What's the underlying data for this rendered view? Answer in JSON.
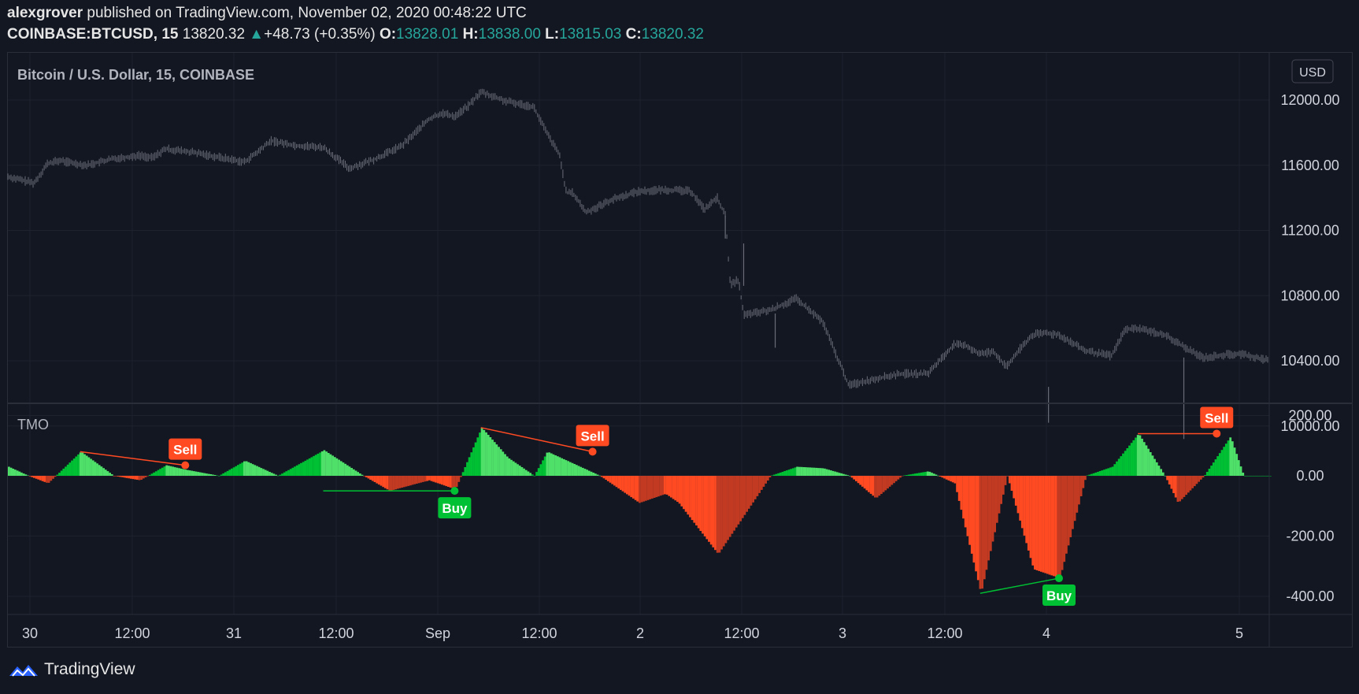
{
  "header": {
    "publisher": "alexgrover",
    "published_text": " published on TradingView.com, November 02, 2020 00:48:22 UTC",
    "symbol": "COINBASE:BTCUSD, 15",
    "last": "13820.32",
    "change": "+48.73 (+0.35%)",
    "o_label": "O:",
    "o_value": "13828.01",
    "h_label": "H:",
    "h_value": "13838.00",
    "l_label": "L:",
    "l_value": "13815.03",
    "c_label": "C:",
    "c_value": "13820.32"
  },
  "main_pane": {
    "title": "Bitcoin / U.S. Dollar, 15, COINBASE",
    "currency": "USD"
  },
  "indicator_pane": {
    "title": "TMO"
  },
  "footer": {
    "brand": "TradingView"
  },
  "colors": {
    "background": "#131722",
    "grid": "#1e222d",
    "axis_text": "#d1d4dc",
    "candles": "#6a6d78",
    "bright_green": "#00c033",
    "light_green": "#4fe06a",
    "bright_red": "#ff4a22",
    "dark_red": "#c23a22",
    "teal": "#26a69a",
    "brand_blue": "#2962ff"
  },
  "chart_data": [
    {
      "type": "line",
      "title": "Bitcoin / U.S. Dollar, 15, COINBASE",
      "x_ticks": [
        "30",
        "12:00",
        "31",
        "12:00",
        "Sep",
        "12:00",
        "2",
        "12:00",
        "3",
        "12:00",
        "4",
        "5"
      ],
      "y_ticks": [
        "12000.00",
        "11600.00",
        "11200.00",
        "10800.00",
        "10400.00",
        "10000.00"
      ],
      "ylim": [
        9700,
        12280
      ],
      "grid": true,
      "series": [
        {
          "x": [
            0,
            2,
            3,
            4,
            4.5,
            6,
            8,
            10,
            11,
            12,
            14,
            16,
            18,
            19,
            20,
            22,
            24,
            26,
            28,
            30,
            32,
            33,
            34,
            35,
            36,
            38,
            40,
            41,
            42,
            42.5,
            43,
            44,
            46,
            48,
            50,
            52,
            53,
            54,
            54.6,
            55,
            55.6,
            56,
            58,
            60,
            62,
            64,
            66,
            68,
            70,
            72,
            73,
            74,
            75,
            76,
            77,
            78,
            79,
            80,
            82,
            84,
            85,
            86,
            88,
            90,
            91,
            92,
            93,
            94,
            96
          ],
          "values": [
            11530,
            11490,
            11610,
            11630,
            11620,
            11600,
            11640,
            11660,
            11645,
            11700,
            11680,
            11650,
            11620,
            11680,
            11750,
            11720,
            11710,
            11580,
            11640,
            11720,
            11880,
            11920,
            11900,
            11960,
            12050,
            11990,
            11960,
            11800,
            11660,
            11430,
            11430,
            11310,
            11390,
            11440,
            11450,
            11440,
            11330,
            11400,
            11290,
            10860,
            10900,
            10680,
            10710,
            10780,
            10640,
            10250,
            10290,
            10320,
            10320,
            10500,
            10490,
            10440,
            10460,
            10360,
            10470,
            10560,
            10570,
            10560,
            10460,
            10430,
            10590,
            10600,
            10560,
            10460,
            10420,
            10430,
            10440,
            10440,
            10400
          ]
        }
      ]
    },
    {
      "type": "area",
      "title": "TMO",
      "x_ticks": [
        "30",
        "12:00",
        "31",
        "12:00",
        "Sep",
        "12:00",
        "2",
        "12:00",
        "3",
        "12:00",
        "4",
        "5"
      ],
      "y_ticks": [
        "200.00",
        "0.00",
        "-200.00",
        "-400.00"
      ],
      "ylim": [
        -455,
        210
      ],
      "series": [
        {
          "name": "TMO",
          "x": [
            0,
            1.5,
            3,
            5.5,
            8,
            10,
            12,
            13.5,
            16,
            18,
            20.5,
            24,
            27,
            29,
            32,
            34,
            36,
            38,
            40,
            41,
            45,
            48,
            50,
            51,
            54,
            58,
            60,
            62,
            64,
            66,
            68,
            70,
            72,
            74,
            76,
            78,
            80,
            82,
            84,
            86,
            88,
            89,
            91,
            93,
            94
          ],
          "values": [
            30,
            0,
            -25,
            80,
            0,
            -15,
            35,
            20,
            0,
            50,
            0,
            85,
            0,
            -50,
            -15,
            -45,
            160,
            60,
            0,
            80,
            0,
            -90,
            -60,
            -90,
            -260,
            0,
            30,
            25,
            0,
            -75,
            0,
            15,
            -25,
            -390,
            0,
            -310,
            -340,
            0,
            30,
            140,
            0,
            -90,
            0,
            130,
            0
          ]
        }
      ],
      "annotations": [
        {
          "label": "Sell",
          "x": 13.5,
          "y": 35
        },
        {
          "label": "Buy",
          "x": 34,
          "y": -50
        },
        {
          "label": "Sell",
          "x": 44.5,
          "y": 80
        },
        {
          "label": "Buy",
          "x": 80,
          "y": -340
        },
        {
          "label": "Sell",
          "x": 92,
          "y": 140
        }
      ]
    }
  ]
}
